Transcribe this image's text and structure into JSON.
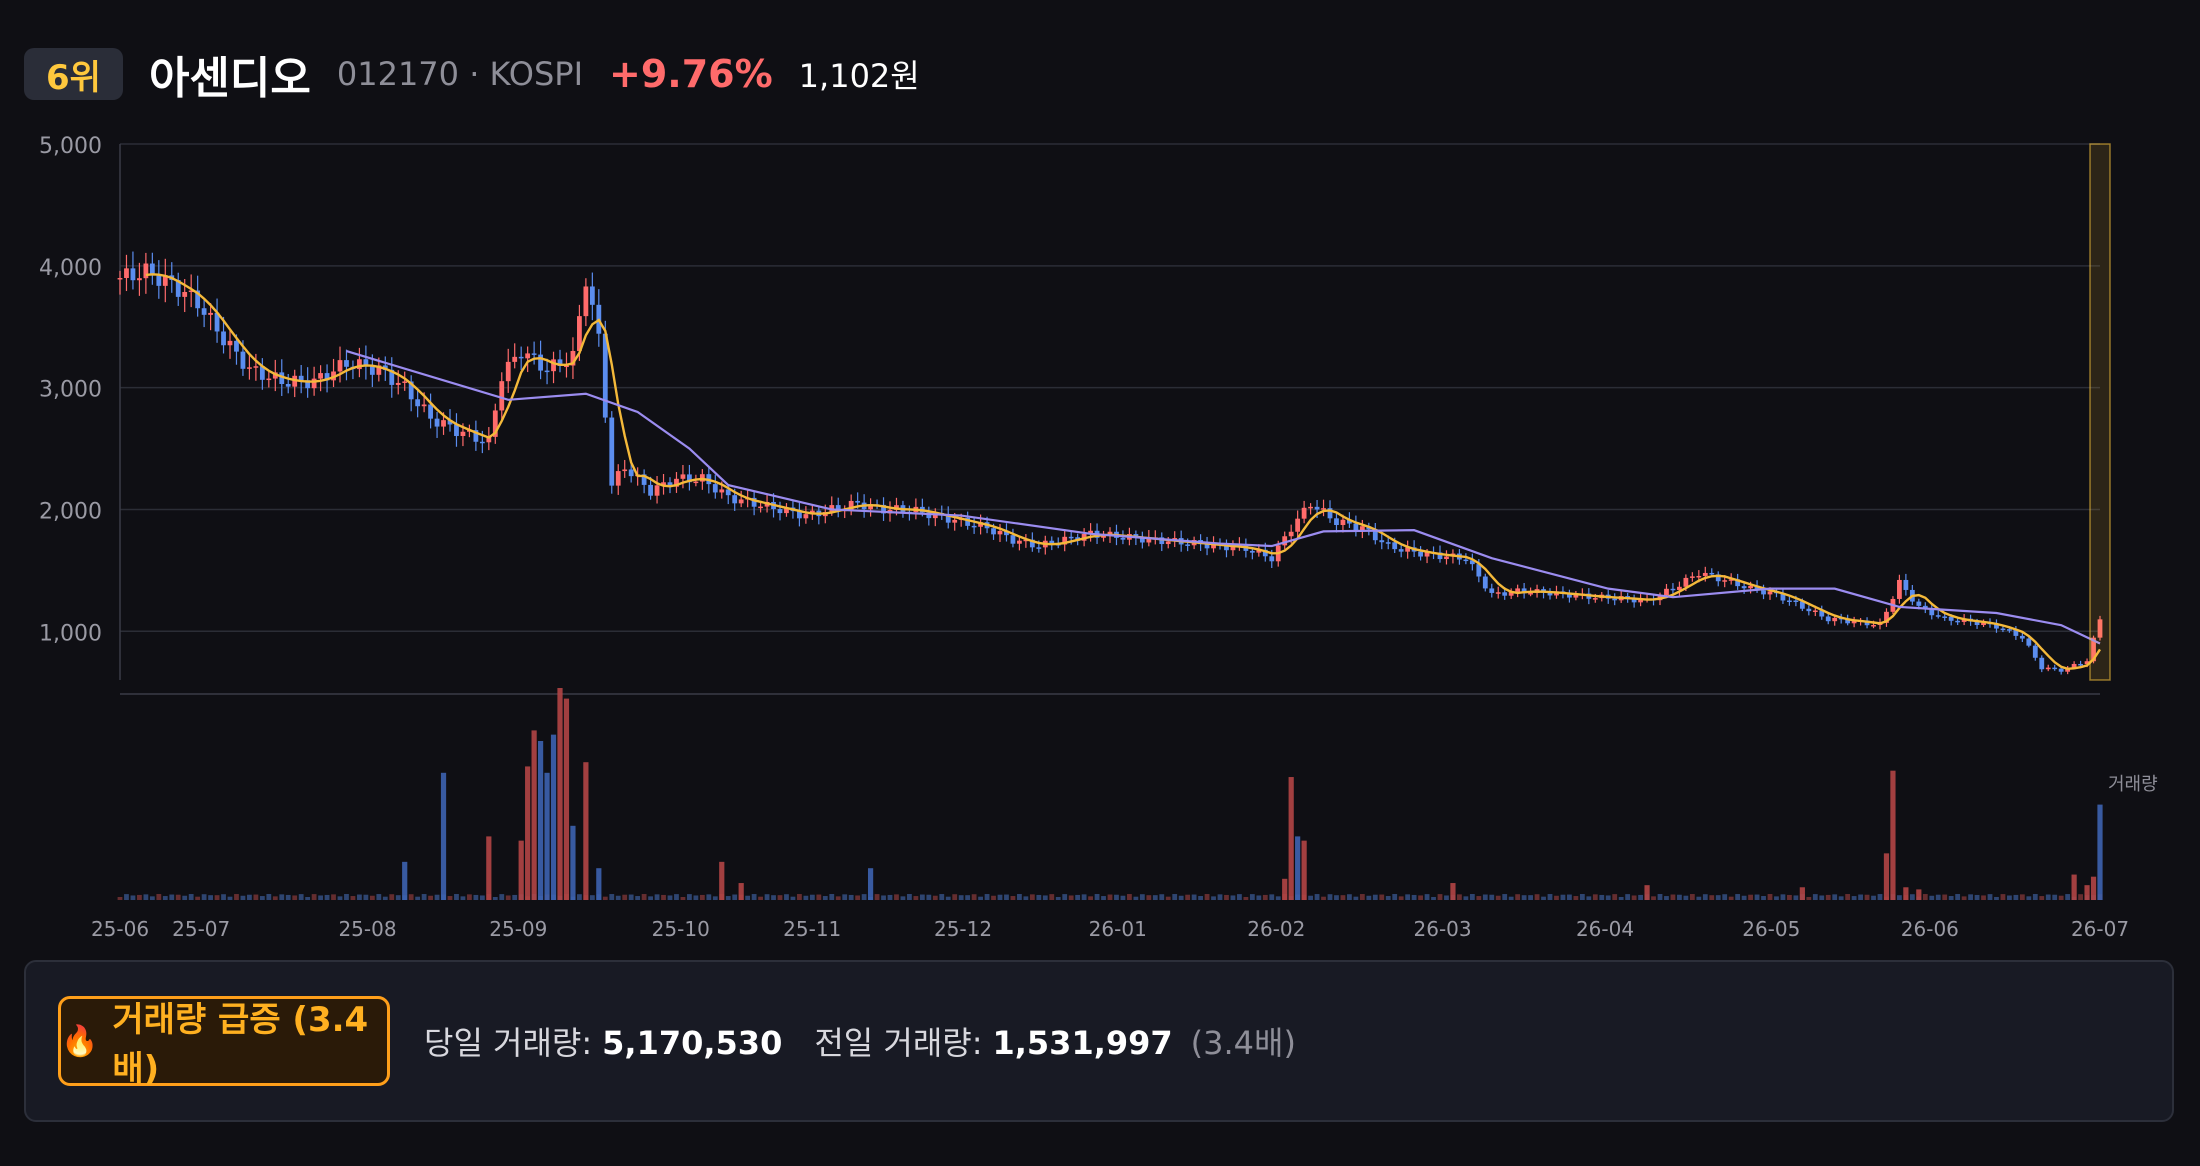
{
  "header": {
    "rank": "6위",
    "name": "아센디오",
    "code_market": "012170 · KOSPI",
    "change": "+9.76%",
    "price": "1,102원"
  },
  "colors": {
    "up": "#ff6b6b",
    "down": "#5b8def",
    "ma_short": "#f4b93a",
    "ma_long": "#9b8cf0",
    "highlight": "#ffc83d"
  },
  "info": {
    "fire_icon": "🔥",
    "surge_label": "거래량 급증 (3.4배)",
    "today_label": "당일 거래량:",
    "today_value": "5,170,530",
    "prev_label": "전일 거래량:",
    "prev_value": "1,531,997",
    "ratio": "(3.4배)"
  },
  "chart_data": {
    "type": "candlestick_with_volume",
    "y_ticks": [
      "5,000",
      "4,000",
      "3,000",
      "2,000",
      "1,000"
    ],
    "y_tick_values": [
      5000,
      4000,
      3000,
      2000,
      1000
    ],
    "ylim": [
      600,
      5000
    ],
    "x_ticks": [
      "25-06",
      "25-07",
      "25-08",
      "25-09",
      "25-10",
      "25-11",
      "25-12",
      "26-01",
      "26-02",
      "26-03",
      "26-04",
      "26-05",
      "26-06",
      "26-07"
    ],
    "volume_label": "거래량",
    "price_path": [
      [
        0,
        3900
      ],
      [
        4,
        3950
      ],
      [
        8,
        3850
      ],
      [
        12,
        3700
      ],
      [
        16,
        3400
      ],
      [
        20,
        3150
      ],
      [
        25,
        3050
      ],
      [
        30,
        3050
      ],
      [
        35,
        3200
      ],
      [
        40,
        3150
      ],
      [
        44,
        3000
      ],
      [
        48,
        2750
      ],
      [
        52,
        2650
      ],
      [
        57,
        2550
      ],
      [
        59,
        3100
      ],
      [
        62,
        3300
      ],
      [
        66,
        3150
      ],
      [
        70,
        3250
      ],
      [
        72,
        3900
      ],
      [
        74,
        3400
      ],
      [
        76,
        2200
      ],
      [
        78,
        2350
      ],
      [
        82,
        2150
      ],
      [
        86,
        2250
      ],
      [
        90,
        2250
      ],
      [
        94,
        2100
      ],
      [
        98,
        2050
      ],
      [
        102,
        2000
      ],
      [
        106,
        1950
      ],
      [
        110,
        2000
      ],
      [
        114,
        2050
      ],
      [
        118,
        2000
      ],
      [
        122,
        2000
      ],
      [
        126,
        1950
      ],
      [
        130,
        1900
      ],
      [
        134,
        1850
      ],
      [
        138,
        1750
      ],
      [
        142,
        1700
      ],
      [
        146,
        1750
      ],
      [
        150,
        1800
      ],
      [
        154,
        1780
      ],
      [
        158,
        1760
      ],
      [
        162,
        1740
      ],
      [
        166,
        1720
      ],
      [
        170,
        1700
      ],
      [
        174,
        1680
      ],
      [
        178,
        1600
      ],
      [
        181,
        1850
      ],
      [
        184,
        2050
      ],
      [
        188,
        1900
      ],
      [
        192,
        1850
      ],
      [
        196,
        1700
      ],
      [
        200,
        1650
      ],
      [
        204,
        1620
      ],
      [
        208,
        1600
      ],
      [
        212,
        1300
      ],
      [
        216,
        1330
      ],
      [
        220,
        1320
      ],
      [
        224,
        1300
      ],
      [
        228,
        1280
      ],
      [
        232,
        1270
      ],
      [
        236,
        1250
      ],
      [
        240,
        1350
      ],
      [
        244,
        1480
      ],
      [
        248,
        1420
      ],
      [
        252,
        1350
      ],
      [
        256,
        1300
      ],
      [
        260,
        1200
      ],
      [
        264,
        1100
      ],
      [
        268,
        1080
      ],
      [
        272,
        1050
      ],
      [
        275,
        1400
      ],
      [
        278,
        1200
      ],
      [
        282,
        1100
      ],
      [
        286,
        1080
      ],
      [
        290,
        1040
      ],
      [
        294,
        950
      ],
      [
        297,
        700
      ],
      [
        300,
        680
      ],
      [
        304,
        760
      ],
      [
        306,
        1102
      ]
    ],
    "ma_long_path": [
      [
        35,
        3300
      ],
      [
        60,
        2900
      ],
      [
        72,
        2950
      ],
      [
        80,
        2800
      ],
      [
        88,
        2500
      ],
      [
        94,
        2200
      ],
      [
        110,
        2000
      ],
      [
        130,
        1950
      ],
      [
        150,
        1800
      ],
      [
        170,
        1720
      ],
      [
        178,
        1700
      ],
      [
        186,
        1820
      ],
      [
        200,
        1830
      ],
      [
        212,
        1600
      ],
      [
        230,
        1350
      ],
      [
        240,
        1280
      ],
      [
        255,
        1350
      ],
      [
        265,
        1350
      ],
      [
        275,
        1200
      ],
      [
        290,
        1150
      ],
      [
        300,
        1050
      ],
      [
        306,
        900
      ]
    ],
    "volume_bars": [
      [
        44,
        0.18,
        "down"
      ],
      [
        50,
        0.6,
        "down"
      ],
      [
        57,
        0.3,
        "up"
      ],
      [
        62,
        0.28,
        "up"
      ],
      [
        63,
        0.63,
        "up"
      ],
      [
        64,
        0.8,
        "up"
      ],
      [
        65,
        0.75,
        "down"
      ],
      [
        66,
        0.6,
        "down"
      ],
      [
        67,
        0.78,
        "down"
      ],
      [
        68,
        1.0,
        "up"
      ],
      [
        69,
        0.95,
        "up"
      ],
      [
        70,
        0.35,
        "down"
      ],
      [
        72,
        0.65,
        "up"
      ],
      [
        74,
        0.15,
        "down"
      ],
      [
        93,
        0.18,
        "up"
      ],
      [
        96,
        0.08,
        "up"
      ],
      [
        116,
        0.15,
        "down"
      ],
      [
        180,
        0.1,
        "up"
      ],
      [
        181,
        0.58,
        "up"
      ],
      [
        182,
        0.3,
        "down"
      ],
      [
        183,
        0.28,
        "up"
      ],
      [
        206,
        0.08,
        "up"
      ],
      [
        236,
        0.07,
        "up"
      ],
      [
        260,
        0.06,
        "up"
      ],
      [
        273,
        0.22,
        "up"
      ],
      [
        274,
        0.61,
        "up"
      ],
      [
        276,
        0.06,
        "up"
      ],
      [
        278,
        0.05,
        "up"
      ],
      [
        302,
        0.12,
        "up"
      ],
      [
        304,
        0.07,
        "up"
      ],
      [
        305,
        0.11,
        "up"
      ],
      [
        306,
        0.45,
        "down"
      ]
    ]
  }
}
